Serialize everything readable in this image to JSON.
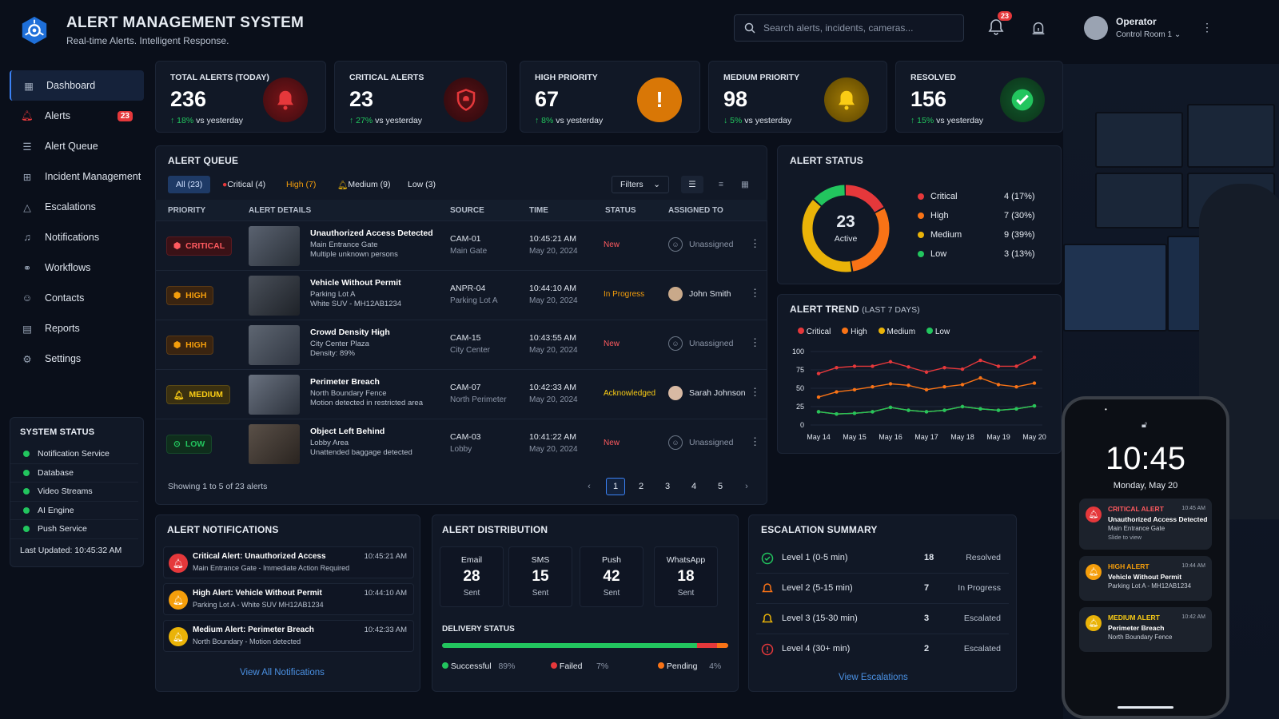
{
  "header": {
    "title": "ALERT MANAGEMENT SYSTEM",
    "subtitle": "Real-time Alerts. Intelligent Response.",
    "search_placeholder": "Search alerts, incidents, cameras...",
    "notification_count": "23",
    "user_name": "Operator",
    "user_room": "Control Room 1"
  },
  "sidebar": {
    "items": [
      {
        "label": "Dashboard",
        "icon": "dashboard-icon"
      },
      {
        "label": "Alerts",
        "icon": "bell-icon",
        "badge": "23"
      },
      {
        "label": "Alert Queue",
        "icon": "list-icon"
      },
      {
        "label": "Incident Management",
        "icon": "incident-icon"
      },
      {
        "label": "Escalations",
        "icon": "escalation-icon"
      },
      {
        "label": "Notifications",
        "icon": "notification-icon"
      },
      {
        "label": "Workflows",
        "icon": "workflow-icon"
      },
      {
        "label": "Contacts",
        "icon": "contacts-icon"
      },
      {
        "label": "Reports",
        "icon": "reports-icon"
      },
      {
        "label": "Settings",
        "icon": "gear-icon"
      }
    ],
    "system_status": {
      "title": "SYSTEM STATUS",
      "services": [
        "Notification Service",
        "Database",
        "Video Streams",
        "AI Engine",
        "Push Service"
      ],
      "last_updated": "Last Updated: 10:45:32 AM"
    }
  },
  "kpis": [
    {
      "label": "TOTAL ALERTS (TODAY)",
      "value": "236",
      "change": "18%",
      "direction": "up",
      "suffix": "vs yesterday",
      "color": "#e5383b"
    },
    {
      "label": "CRITICAL ALERTS",
      "value": "23",
      "change": "27%",
      "direction": "up",
      "suffix": "vs yesterday",
      "color": "#b91c1c"
    },
    {
      "label": "HIGH PRIORITY",
      "value": "67",
      "change": "8%",
      "direction": "up",
      "suffix": "vs yesterday",
      "color": "#f59e0b"
    },
    {
      "label": "MEDIUM PRIORITY",
      "value": "98",
      "change": "5%",
      "direction": "down",
      "suffix": "vs yesterday",
      "color": "#eab308"
    },
    {
      "label": "RESOLVED",
      "value": "156",
      "change": "15%",
      "direction": "up",
      "suffix": "vs yesterday",
      "color": "#22c55e"
    }
  ],
  "queue": {
    "title": "ALERT QUEUE",
    "tabs": [
      "All (23)",
      "Critical (4)",
      "High (7)",
      "Medium (9)",
      "Low (3)"
    ],
    "filters_label": "Filters",
    "columns": [
      "PRIORITY",
      "ALERT DETAILS",
      "SOURCE",
      "TIME",
      "STATUS",
      "ASSIGNED TO"
    ],
    "rows": [
      {
        "priority": "CRITICAL",
        "title": "Unauthorized Access Detected",
        "loc": "Main Entrance Gate",
        "desc": "Multiple unknown persons",
        "source": "CAM-01",
        "source_loc": "Main Gate",
        "time": "10:45:21 AM",
        "date": "May 20, 2024",
        "status": "New",
        "assigned": "Unassigned"
      },
      {
        "priority": "HIGH",
        "title": "Vehicle Without Permit",
        "loc": "Parking Lot A",
        "desc": "White SUV - MH12AB1234",
        "source": "ANPR-04",
        "source_loc": "Parking Lot A",
        "time": "10:44:10 AM",
        "date": "May 20, 2024",
        "status": "In Progress",
        "assigned": "John Smith"
      },
      {
        "priority": "HIGH",
        "title": "Crowd Density High",
        "loc": "City Center Plaza",
        "desc": "Density: 89%",
        "source": "CAM-15",
        "source_loc": "City Center",
        "time": "10:43:55 AM",
        "date": "May 20, 2024",
        "status": "New",
        "assigned": "Unassigned"
      },
      {
        "priority": "MEDIUM",
        "title": "Perimeter Breach",
        "loc": "North Boundary Fence",
        "desc": "Motion detected in restricted area",
        "source": "CAM-07",
        "source_loc": "North Perimeter",
        "time": "10:42:33 AM",
        "date": "May 20, 2024",
        "status": "Acknowledged",
        "assigned": "Sarah Johnson"
      },
      {
        "priority": "LOW",
        "title": "Object Left Behind",
        "loc": "Lobby Area",
        "desc": "Unattended baggage detected",
        "source": "CAM-03",
        "source_loc": "Lobby",
        "time": "10:41:22 AM",
        "date": "May 20, 2024",
        "status": "New",
        "assigned": "Unassigned"
      }
    ],
    "showing": "Showing 1 to 5 of 23 alerts",
    "pages": [
      "1",
      "2",
      "3",
      "4",
      "5"
    ]
  },
  "status": {
    "title": "ALERT STATUS",
    "center_value": "23",
    "center_label": "Active",
    "legend": [
      {
        "label": "Critical",
        "value": "4 (17%)",
        "count": 4,
        "color": "#e5383b"
      },
      {
        "label": "High",
        "value": "7 (30%)",
        "count": 7,
        "color": "#f97316"
      },
      {
        "label": "Medium",
        "value": "9 (39%)",
        "count": 9,
        "color": "#eab308"
      },
      {
        "label": "Low",
        "value": "3 (13%)",
        "count": 3,
        "color": "#22c55e"
      }
    ]
  },
  "chart_data": {
    "type": "line",
    "title": "ALERT TREND",
    "subtitle": "(LAST 7 DAYS)",
    "categories": [
      "May 14",
      "May 15",
      "May 16",
      "May 17",
      "May 18",
      "May 19",
      "May 20"
    ],
    "x": [
      "May 14",
      "",
      "May 15",
      "",
      "May 16",
      "",
      "May 17",
      "",
      "May 18",
      "",
      "May 19",
      "",
      "May 20"
    ],
    "ylim": [
      0,
      100
    ],
    "yticks": [
      "0",
      "25",
      "50",
      "75",
      "100"
    ],
    "series": [
      {
        "name": "Critical",
        "color": "#e5383b",
        "values": [
          70,
          78,
          80,
          80,
          86,
          79,
          72,
          78,
          76,
          88,
          80,
          80,
          92
        ]
      },
      {
        "name": "High",
        "color": "#f97316",
        "values": [
          38,
          45,
          48,
          52,
          56,
          54,
          48,
          52,
          55,
          64,
          55,
          52,
          57
        ]
      },
      {
        "name": "Medium",
        "color": "#eab308",
        "values": [
          18,
          15,
          16,
          18,
          24,
          20,
          18,
          20,
          25,
          22,
          20,
          22,
          26
        ]
      },
      {
        "name": "Low",
        "color": "#22c55e",
        "values": [
          18,
          15,
          16,
          18,
          24,
          20,
          18,
          20,
          25,
          22,
          20,
          22,
          26
        ]
      }
    ]
  },
  "notifications": {
    "title": "ALERT NOTIFICATIONS",
    "items": [
      {
        "title": "Critical Alert: Unauthorized Access",
        "sub": "Main Entrance Gate - Immediate Action Required",
        "time": "10:45:21 AM",
        "color": "#e5383b"
      },
      {
        "title": "High Alert: Vehicle Without Permit",
        "sub": "Parking Lot A - White SUV MH12AB1234",
        "time": "10:44:10 AM",
        "color": "#f59e0b"
      },
      {
        "title": "Medium Alert: Perimeter Breach",
        "sub": "North Boundary - Motion detected",
        "time": "10:42:33 AM",
        "color": "#eab308"
      }
    ],
    "link": "View All Notifications"
  },
  "distribution": {
    "title": "ALERT DISTRIBUTION",
    "channels": [
      {
        "label": "Email",
        "value": "28",
        "sub": "Sent"
      },
      {
        "label": "SMS",
        "value": "15",
        "sub": "Sent"
      },
      {
        "label": "Push",
        "value": "42",
        "sub": "Sent"
      },
      {
        "label": "WhatsApp",
        "value": "18",
        "sub": "Sent"
      }
    ],
    "delivery_title": "DELIVERY STATUS",
    "delivery": [
      {
        "label": "Successful",
        "value": "89%",
        "fraction": 0.89,
        "color": "#22c55e"
      },
      {
        "label": "Failed",
        "value": "7%",
        "fraction": 0.07,
        "color": "#e5383b"
      },
      {
        "label": "Pending",
        "value": "4%",
        "fraction": 0.04,
        "color": "#f97316"
      }
    ]
  },
  "escalation": {
    "title": "ESCALATION SUMMARY",
    "rows": [
      {
        "label": "Level 1 (0-5 min)",
        "count": "18",
        "status": "Resolved",
        "color": "#22c55e"
      },
      {
        "label": "Level 2 (5-15 min)",
        "count": "7",
        "status": "In Progress",
        "color": "#f97316"
      },
      {
        "label": "Level 3 (15-30 min)",
        "count": "3",
        "status": "Escalated",
        "color": "#eab308"
      },
      {
        "label": "Level 4 (30+ min)",
        "count": "2",
        "status": "Escalated",
        "color": "#e5383b"
      }
    ],
    "link": "View Escalations"
  },
  "phone": {
    "time": "10:45",
    "date": "Monday, May 20",
    "cards": [
      {
        "title": "CRITICAL ALERT",
        "msg": "Unauthorized Access Detected",
        "loc": "Main Entrance Gate",
        "action": "Slide to view",
        "time": "10:45 AM",
        "color": "#e5383b"
      },
      {
        "title": "HIGH ALERT",
        "msg": "Vehicle Without Permit",
        "loc": "Parking Lot A - MH12AB1234",
        "action": "",
        "time": "10:44 AM",
        "color": "#f59e0b"
      },
      {
        "title": "MEDIUM ALERT",
        "msg": "Perimeter Breach",
        "loc": "North Boundary Fence",
        "action": "",
        "time": "10:42 AM",
        "color": "#eab308"
      }
    ]
  }
}
